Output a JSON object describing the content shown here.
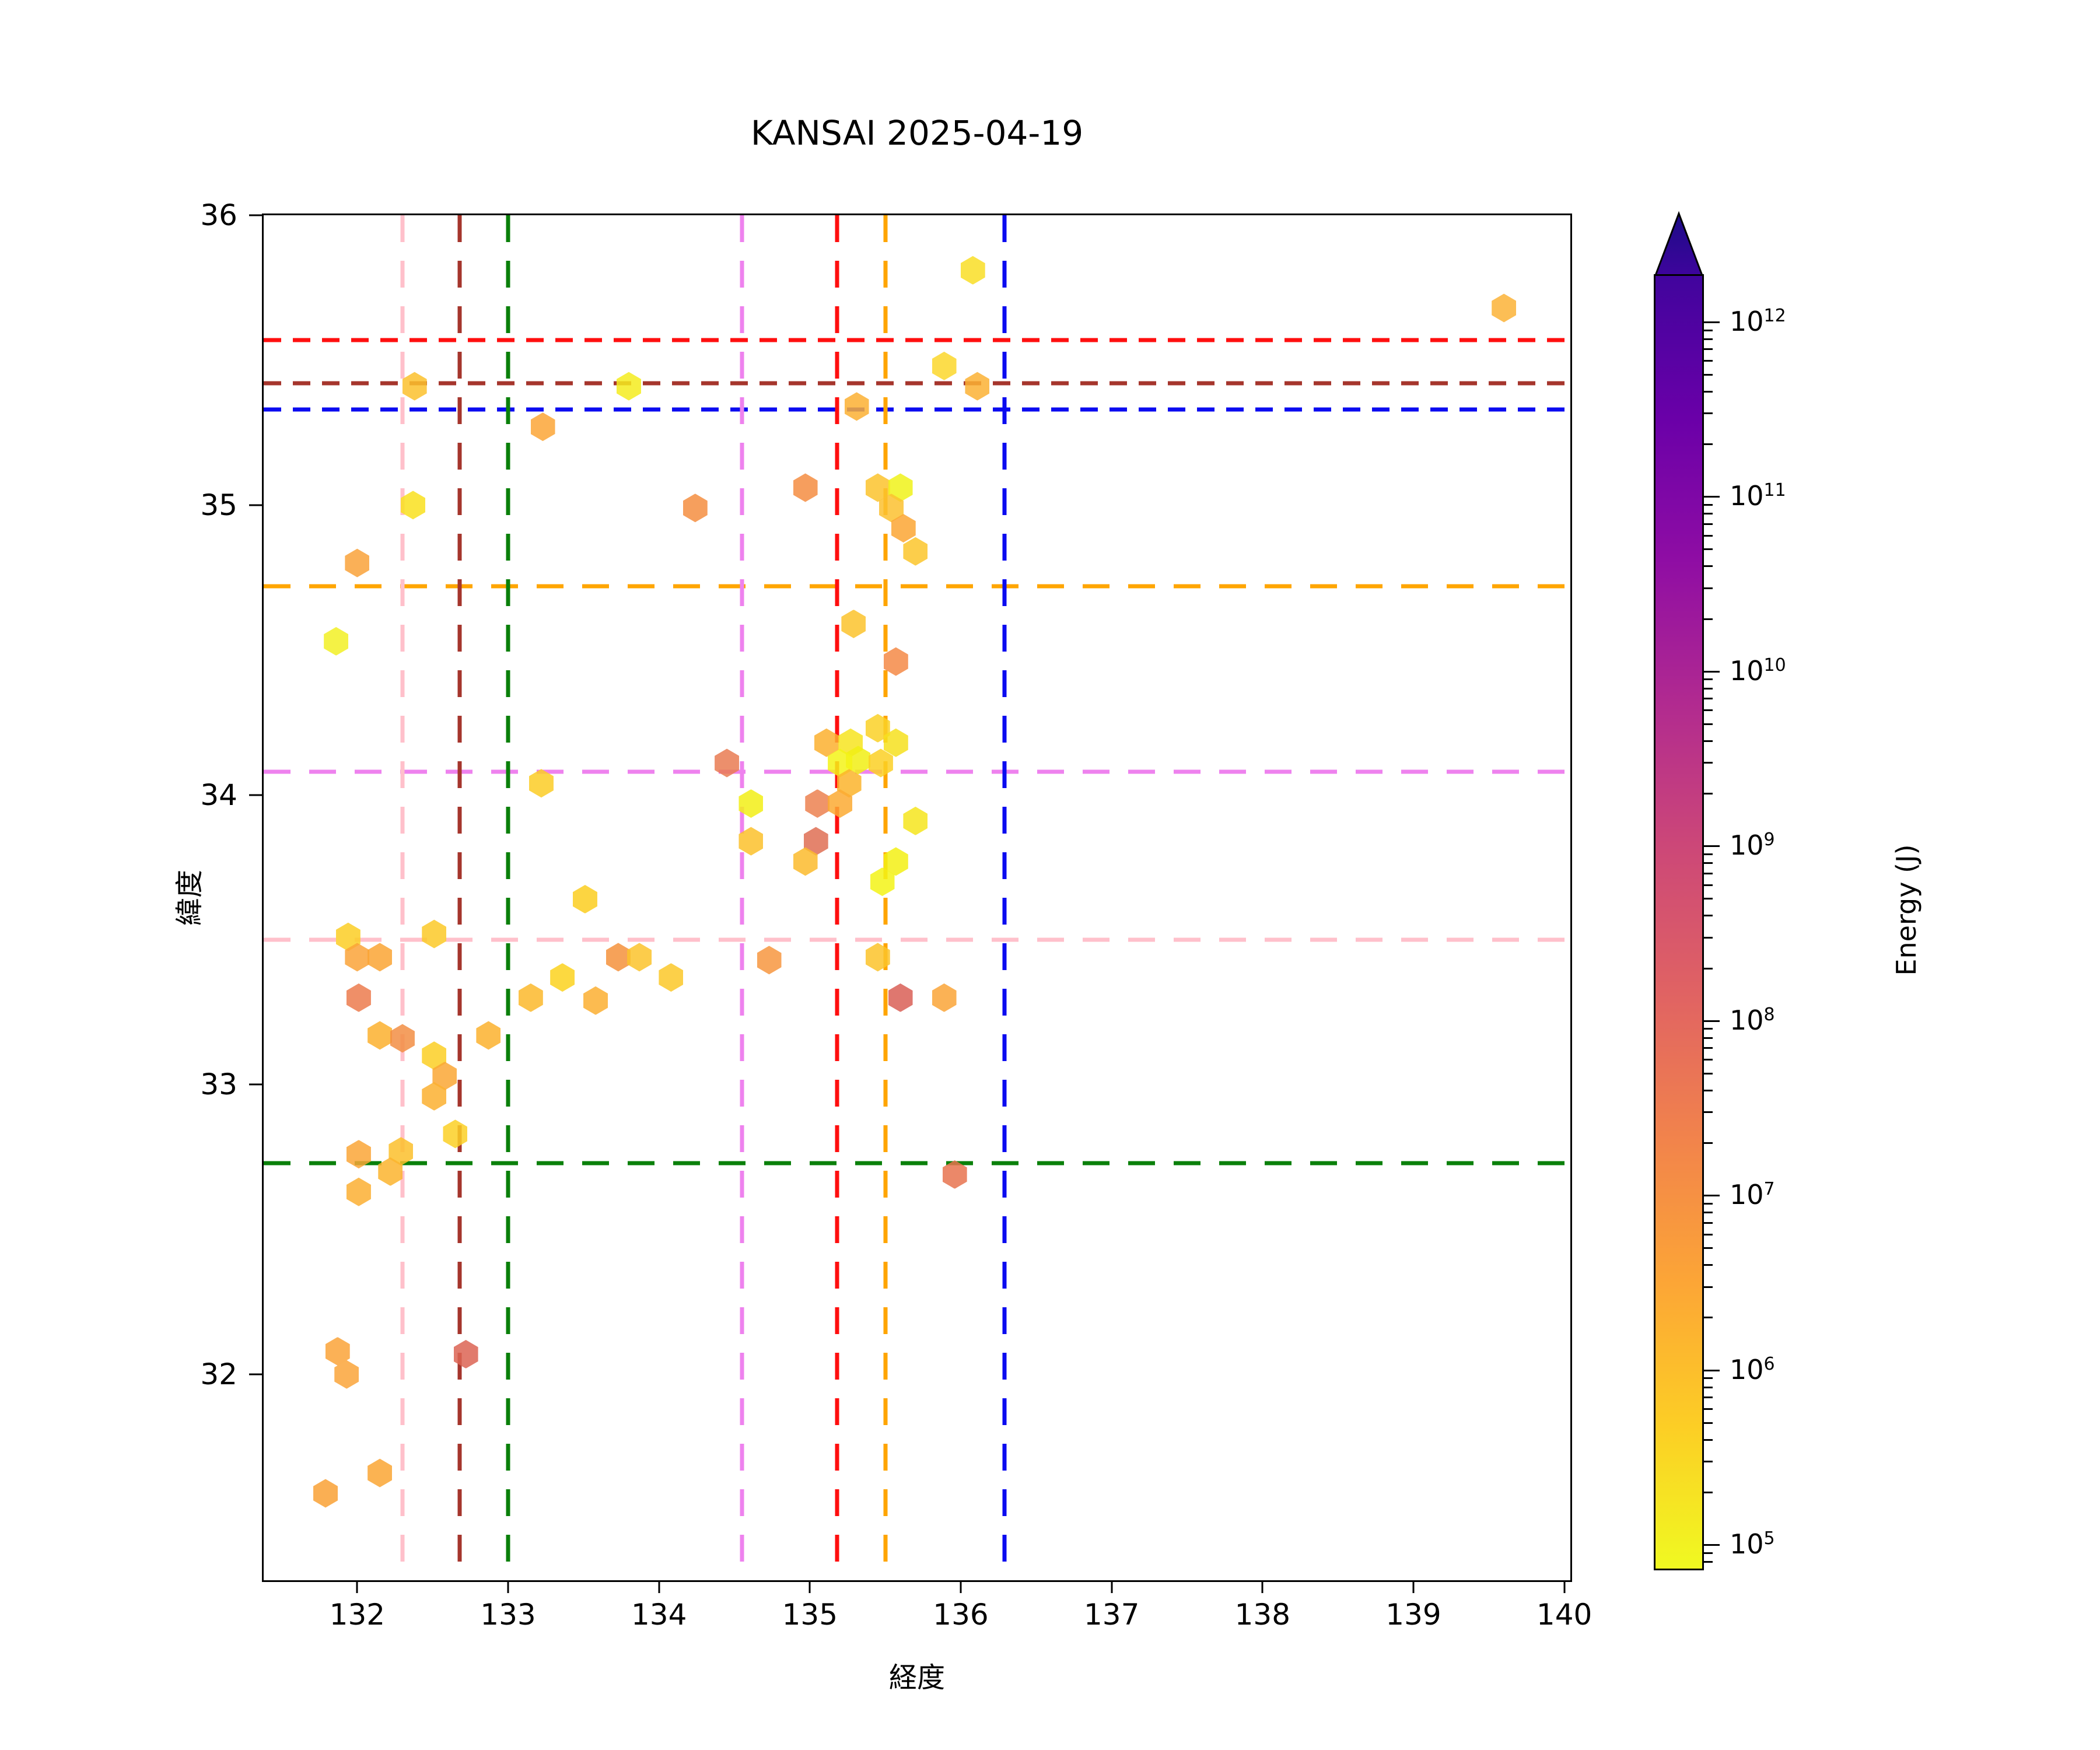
{
  "chart_data": {
    "type": "scatter",
    "title": "KANSAI 2025-04-19",
    "xlabel": "経度",
    "ylabel": "緯度",
    "xlim": [
      131.38,
      140.04
    ],
    "ylim": [
      31.29,
      36.0
    ],
    "xticks": [
      132,
      133,
      134,
      135,
      136,
      137,
      138,
      139,
      140
    ],
    "yticks": [
      32,
      33,
      34,
      35,
      36
    ],
    "grid": false,
    "legend": null,
    "marker": "hexagon",
    "point_alpha": 0.85,
    "color_encoding": "Energy (J), log scale, plasma reversed colormap (yellow=low, dark blue=high)",
    "hlines": [
      {
        "y": 35.57,
        "color": "#ff0f0f",
        "name": "red",
        "dash": "dense"
      },
      {
        "y": 35.42,
        "color": "#a5352c",
        "name": "darkred",
        "dash": "dense"
      },
      {
        "y": 35.33,
        "color": "#0b0bf0",
        "name": "blue",
        "dash": "dense"
      },
      {
        "y": 34.72,
        "color": "#ffa500",
        "name": "orange",
        "dash": "long"
      },
      {
        "y": 34.08,
        "color": "#ee82ee",
        "name": "violet",
        "dash": "long"
      },
      {
        "y": 33.5,
        "color": "#ffc0cb",
        "name": "pink",
        "dash": "long"
      },
      {
        "y": 32.73,
        "color": "#0a800a",
        "name": "green",
        "dash": "long"
      }
    ],
    "vlines": [
      {
        "x": 132.3,
        "color": "#ffc0cb",
        "name": "pink",
        "dash": "long"
      },
      {
        "x": 132.68,
        "color": "#a5352c",
        "name": "darkred",
        "dash": "long"
      },
      {
        "x": 133.0,
        "color": "#0a800a",
        "name": "green",
        "dash": "long"
      },
      {
        "x": 134.55,
        "color": "#ee82ee",
        "name": "violet",
        "dash": "long"
      },
      {
        "x": 135.18,
        "color": "#ff0f0f",
        "name": "red",
        "dash": "long"
      },
      {
        "x": 135.5,
        "color": "#ffa500",
        "name": "orange",
        "dash": "long"
      },
      {
        "x": 136.29,
        "color": "#0b0bf0",
        "name": "blue",
        "dash": "long"
      }
    ],
    "points": [
      {
        "x": 136.08,
        "y": 35.81,
        "c": "#f9de26"
      },
      {
        "x": 139.6,
        "y": 35.68,
        "c": "#fbb337"
      },
      {
        "x": 135.89,
        "y": 35.48,
        "c": "#fcd72b"
      },
      {
        "x": 136.11,
        "y": 35.41,
        "c": "#fbb134"
      },
      {
        "x": 132.38,
        "y": 35.41,
        "c": "#fbc12d"
      },
      {
        "x": 133.8,
        "y": 35.41,
        "c": "#f5ec1e"
      },
      {
        "x": 135.31,
        "y": 35.34,
        "c": "#fbb032"
      },
      {
        "x": 133.23,
        "y": 35.27,
        "c": "#fba637"
      },
      {
        "x": 134.97,
        "y": 35.06,
        "c": "#f58d42"
      },
      {
        "x": 135.45,
        "y": 35.06,
        "c": "#fcc32d"
      },
      {
        "x": 135.6,
        "y": 35.06,
        "c": "#f0f21a"
      },
      {
        "x": 132.37,
        "y": 35.0,
        "c": "#f9e01f"
      },
      {
        "x": 134.24,
        "y": 34.99,
        "c": "#f58e41"
      },
      {
        "x": 135.54,
        "y": 34.99,
        "c": "#fbc130"
      },
      {
        "x": 135.62,
        "y": 34.92,
        "c": "#fba634"
      },
      {
        "x": 135.7,
        "y": 34.84,
        "c": "#fcc62b"
      },
      {
        "x": 132.0,
        "y": 34.8,
        "c": "#f9a239"
      },
      {
        "x": 135.29,
        "y": 34.59,
        "c": "#fcc32d"
      },
      {
        "x": 131.86,
        "y": 34.53,
        "c": "#f2f024"
      },
      {
        "x": 135.57,
        "y": 34.46,
        "c": "#f58a46"
      },
      {
        "x": 135.45,
        "y": 34.23,
        "c": "#fad127"
      },
      {
        "x": 135.11,
        "y": 34.18,
        "c": "#fbb02f"
      },
      {
        "x": 135.27,
        "y": 34.18,
        "c": "#f7e420"
      },
      {
        "x": 135.57,
        "y": 34.18,
        "c": "#f6e11e"
      },
      {
        "x": 135.32,
        "y": 34.12,
        "c": "#f1ef14"
      },
      {
        "x": 134.45,
        "y": 34.11,
        "c": "#e97b52"
      },
      {
        "x": 135.2,
        "y": 34.11,
        "c": "#f3f318"
      },
      {
        "x": 135.47,
        "y": 34.11,
        "c": "#fbd025"
      },
      {
        "x": 135.26,
        "y": 34.04,
        "c": "#fbb42c"
      },
      {
        "x": 133.22,
        "y": 34.04,
        "c": "#fbcc26"
      },
      {
        "x": 134.61,
        "y": 33.97,
        "c": "#f2ee16"
      },
      {
        "x": 135.05,
        "y": 33.97,
        "c": "#ec8150"
      },
      {
        "x": 135.2,
        "y": 33.97,
        "c": "#fbaa33"
      },
      {
        "x": 135.7,
        "y": 33.91,
        "c": "#f6e51d"
      },
      {
        "x": 134.61,
        "y": 33.84,
        "c": "#fbc12c"
      },
      {
        "x": 135.04,
        "y": 33.84,
        "c": "#df6e54"
      },
      {
        "x": 134.97,
        "y": 33.77,
        "c": "#fbbb2d"
      },
      {
        "x": 135.57,
        "y": 33.77,
        "c": "#f3f014"
      },
      {
        "x": 135.48,
        "y": 33.7,
        "c": "#f3f316"
      },
      {
        "x": 133.51,
        "y": 33.64,
        "c": "#fcce20"
      },
      {
        "x": 131.94,
        "y": 33.51,
        "c": "#fbce24"
      },
      {
        "x": 132.51,
        "y": 33.52,
        "c": "#fbc928"
      },
      {
        "x": 132.0,
        "y": 33.44,
        "c": "#faa338"
      },
      {
        "x": 132.15,
        "y": 33.44,
        "c": "#faa434"
      },
      {
        "x": 133.73,
        "y": 33.44,
        "c": "#f5923c"
      },
      {
        "x": 133.87,
        "y": 33.44,
        "c": "#fbc32b"
      },
      {
        "x": 135.45,
        "y": 33.44,
        "c": "#fbc32a"
      },
      {
        "x": 134.73,
        "y": 33.43,
        "c": "#f79640"
      },
      {
        "x": 133.36,
        "y": 33.37,
        "c": "#fcd21f"
      },
      {
        "x": 134.08,
        "y": 33.37,
        "c": "#fbc829"
      },
      {
        "x": 132.01,
        "y": 33.3,
        "c": "#ec7b4d"
      },
      {
        "x": 133.15,
        "y": 33.3,
        "c": "#fbb92c"
      },
      {
        "x": 133.58,
        "y": 33.29,
        "c": "#fbaf31"
      },
      {
        "x": 135.6,
        "y": 33.3,
        "c": "#d95f56"
      },
      {
        "x": 135.89,
        "y": 33.3,
        "c": "#faa437"
      },
      {
        "x": 132.15,
        "y": 33.17,
        "c": "#fbb02e"
      },
      {
        "x": 132.3,
        "y": 33.16,
        "c": "#f28e44"
      },
      {
        "x": 132.87,
        "y": 33.17,
        "c": "#fbb22e"
      },
      {
        "x": 132.51,
        "y": 33.1,
        "c": "#fbcf24"
      },
      {
        "x": 132.58,
        "y": 33.03,
        "c": "#faa735"
      },
      {
        "x": 132.51,
        "y": 32.96,
        "c": "#fbb030"
      },
      {
        "x": 132.65,
        "y": 32.83,
        "c": "#fbd026"
      },
      {
        "x": 132.01,
        "y": 32.76,
        "c": "#faa637"
      },
      {
        "x": 132.29,
        "y": 32.77,
        "c": "#fbc02b"
      },
      {
        "x": 132.22,
        "y": 32.7,
        "c": "#fbb42e"
      },
      {
        "x": 132.01,
        "y": 32.63,
        "c": "#fbaf33"
      },
      {
        "x": 135.96,
        "y": 32.69,
        "c": "#e8734f"
      },
      {
        "x": 131.87,
        "y": 32.08,
        "c": "#faa338"
      },
      {
        "x": 131.93,
        "y": 32.0,
        "c": "#faa53a"
      },
      {
        "x": 132.72,
        "y": 32.07,
        "c": "#dc6454"
      },
      {
        "x": 132.15,
        "y": 31.66,
        "c": "#faa634"
      },
      {
        "x": 131.79,
        "y": 31.59,
        "c": "#f9a135"
      }
    ],
    "colorbar": {
      "label": "Energy (J)",
      "tick_exponents": [
        12,
        11,
        10,
        9,
        8,
        7,
        6,
        5
      ],
      "top_exponent": 12.27,
      "bottom_exponent": 4.85,
      "extend": "max",
      "gradient_bottom_to_top": [
        "#f0f921",
        "#fcce25",
        "#fca636",
        "#f2844b",
        "#e16462",
        "#cc4778",
        "#b12a90",
        "#8f0da4",
        "#6a00a8",
        "#41049d"
      ],
      "arrow_color_tip": "#1c0c88",
      "arrow_color_base": "#3e049c"
    }
  }
}
